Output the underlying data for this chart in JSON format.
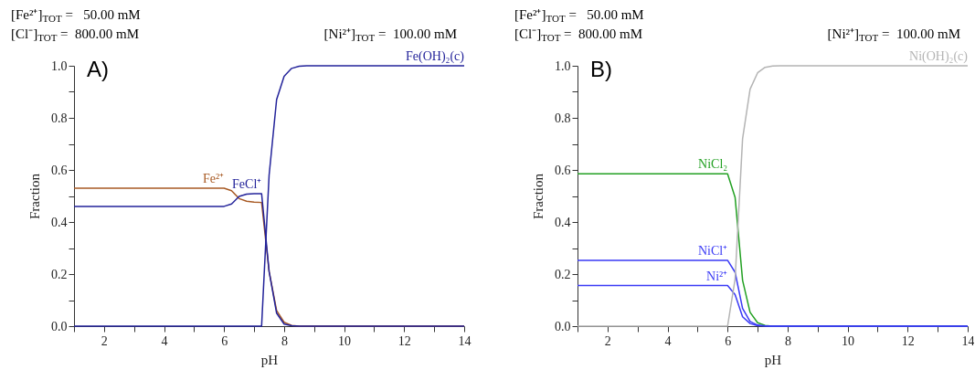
{
  "chart_data": [
    {
      "type": "line",
      "title": "A)",
      "xlabel": "pH",
      "ylabel": "Fraction",
      "xlim": [
        1,
        14
      ],
      "ylim": [
        0,
        1
      ],
      "xticks": [
        {
          "value": 1,
          "label": null
        },
        2,
        {
          "value": 3,
          "label": null
        },
        4,
        {
          "value": 5,
          "label": null
        },
        6,
        {
          "value": 7,
          "label": null
        },
        8,
        {
          "value": 9,
          "label": null
        },
        10,
        {
          "value": 11,
          "label": null
        },
        12,
        {
          "value": 13,
          "label": null
        },
        14
      ],
      "yticks": [
        {
          "value": 0,
          "label": "0.0"
        },
        {
          "value": 0.1,
          "label": null
        },
        {
          "value": 0.2,
          "label": "0.2"
        },
        {
          "value": 0.3,
          "label": null
        },
        {
          "value": 0.4,
          "label": "0.4"
        },
        {
          "value": 0.5,
          "label": null
        },
        {
          "value": 0.6,
          "label": "0.6"
        },
        {
          "value": 0.7,
          "label": null
        },
        {
          "value": 0.8,
          "label": "0.8"
        },
        {
          "value": 0.9,
          "label": null
        },
        {
          "value": 1,
          "label": "1.0"
        }
      ],
      "annotations": [
        "[Fe²⁺]$_{TOT}$ =   50.00 mM",
        "[Cl⁻]$_{TOT}$ =  800.00 mM",
        "[Ni²⁺]$_{TOT}$ =  100.00 mM"
      ],
      "series": [
        {
          "name": "Fe²⁺",
          "color": "#a85a24",
          "x": [
            1,
            6,
            6.25,
            6.5,
            6.75,
            7,
            7.25,
            7.5,
            7.75,
            8,
            8.25,
            8.5,
            14
          ],
          "values": [
            0.53,
            0.53,
            0.52,
            0.49,
            0.48,
            0.476,
            0.475,
            0.21,
            0.06,
            0.015,
            0.003,
            0,
            0
          ]
        },
        {
          "name": "FeCl⁺",
          "color": "#23239a",
          "x": [
            1,
            6,
            6.25,
            6.5,
            6.75,
            7,
            7.25,
            7.5,
            7.75,
            8,
            8.25,
            8.5,
            14
          ],
          "values": [
            0.46,
            0.46,
            0.469,
            0.498,
            0.507,
            0.509,
            0.509,
            0.21,
            0.05,
            0.008,
            0.002,
            0,
            0
          ]
        },
        {
          "name": "Fe(OH)₂(c)",
          "color": "#23239a",
          "x": [
            1,
            7.25,
            7.5,
            7.75,
            8,
            8.25,
            8.5,
            8.75,
            14
          ],
          "values": [
            0,
            0,
            0.58,
            0.87,
            0.96,
            0.99,
            0.998,
            1,
            1
          ]
        }
      ]
    },
    {
      "type": "line",
      "title": "B)",
      "xlabel": "pH",
      "ylabel": "Fraction",
      "xlim": [
        1,
        14
      ],
      "ylim": [
        0,
        1
      ],
      "xticks": [
        {
          "value": 1,
          "label": null
        },
        2,
        {
          "value": 3,
          "label": null
        },
        4,
        {
          "value": 5,
          "label": null
        },
        6,
        {
          "value": 7,
          "label": null
        },
        8,
        {
          "value": 9,
          "label": null
        },
        10,
        {
          "value": 11,
          "label": null
        },
        12,
        {
          "value": 13,
          "label": null
        },
        14
      ],
      "yticks": [
        {
          "value": 0,
          "label": "0.0"
        },
        {
          "value": 0.1,
          "label": null
        },
        {
          "value": 0.2,
          "label": "0.2"
        },
        {
          "value": 0.3,
          "label": null
        },
        {
          "value": 0.4,
          "label": "0.4"
        },
        {
          "value": 0.5,
          "label": null
        },
        {
          "value": 0.6,
          "label": "0.6"
        },
        {
          "value": 0.7,
          "label": null
        },
        {
          "value": 0.8,
          "label": "0.8"
        },
        {
          "value": 0.9,
          "label": null
        },
        {
          "value": 1,
          "label": "1.0"
        }
      ],
      "annotations": [
        "[Fe²⁺]$_{TOT}$ =   50.00 mM",
        "[Cl⁻]$_{TOT}$ =  800.00 mM",
        "[Ni²⁺]$_{TOT}$ =  100.00 mM"
      ],
      "series": [
        {
          "name": "NiCl₂",
          "color": "#22a022",
          "x": [
            1,
            6,
            6.25,
            6.5,
            6.75,
            7,
            7.25,
            7.5,
            14
          ],
          "values": [
            0.585,
            0.585,
            0.495,
            0.176,
            0.053,
            0.013,
            0.003,
            0,
            0
          ]
        },
        {
          "name": "NiCl⁺",
          "color": "#3a3af5",
          "x": [
            1,
            6,
            6.25,
            6.5,
            6.75,
            7,
            7.25,
            7.5,
            14
          ],
          "values": [
            0.253,
            0.253,
            0.207,
            0.068,
            0.018,
            0.004,
            0.001,
            0,
            0
          ]
        },
        {
          "name": "Ni²⁺",
          "color": "#3a3af5",
          "x": [
            1,
            6,
            6.25,
            6.5,
            6.75,
            7,
            7.5,
            14
          ],
          "values": [
            0.156,
            0.156,
            0.121,
            0.036,
            0.01,
            0.002,
            0,
            0
          ]
        },
        {
          "name": "Ni(OH)₂(c)",
          "color": "#b4b4b4",
          "x": [
            1,
            6,
            6.25,
            6.5,
            6.75,
            7,
            7.25,
            7.5,
            7.75,
            14
          ],
          "values": [
            0,
            0,
            0.18,
            0.72,
            0.91,
            0.973,
            0.994,
            0.999,
            1,
            1
          ]
        }
      ]
    }
  ]
}
